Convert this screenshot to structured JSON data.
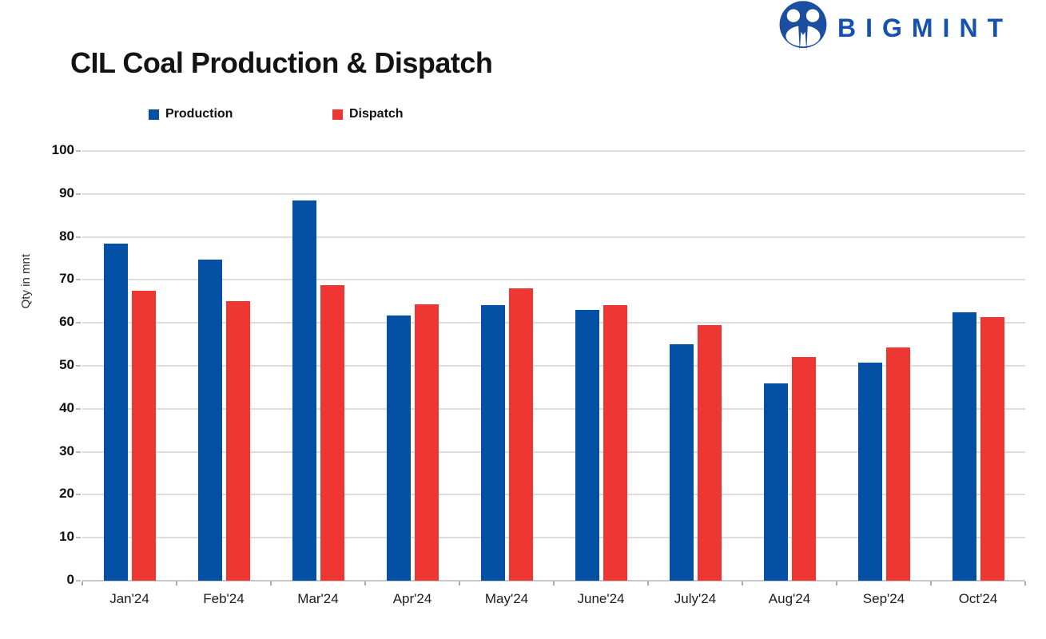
{
  "header": {
    "title": "CIL Coal Production & Dispatch",
    "logo": {
      "text": "BIGMINT",
      "icon": "bigmint-m-mark-icon"
    }
  },
  "colors": {
    "production_blue": "#0450A4",
    "dispatch_red": "#EE3733",
    "logo_icon_blue": "#1C4EA0",
    "logo_text_blue": "#1551AE",
    "gridline_gray": "#DDDDDD",
    "axis_line_gray": "#C8C8C8",
    "title_text": "#131313"
  },
  "chart_data": {
    "type": "bar",
    "title": "CIL Coal Production & Dispatch",
    "categories": [
      "Jan'24",
      "Feb'24",
      "Mar'24",
      "Apr'24",
      "May'24",
      "June'24",
      "July'24",
      "Aug'24",
      "Sep'24",
      "Oct'24"
    ],
    "series": [
      {
        "name": "Production",
        "color": "#0450A4",
        "values": [
          78.4,
          74.8,
          88.5,
          61.8,
          64.2,
          63.1,
          55.0,
          46.0,
          50.8,
          62.4
        ]
      },
      {
        "name": "Dispatch",
        "color": "#EE3733",
        "values": [
          67.5,
          65.1,
          68.7,
          64.3,
          68.1,
          64.1,
          59.5,
          52.0,
          54.3,
          61.3
        ]
      }
    ],
    "xlabel": "",
    "ylabel": "Qty in mnt",
    "ylim": [
      0,
      100
    ],
    "ytick_step": 10,
    "yticks": [
      0,
      10,
      20,
      30,
      40,
      50,
      60,
      70,
      80,
      90,
      100
    ],
    "grid": "horizontal",
    "legend_position": "top-left"
  }
}
